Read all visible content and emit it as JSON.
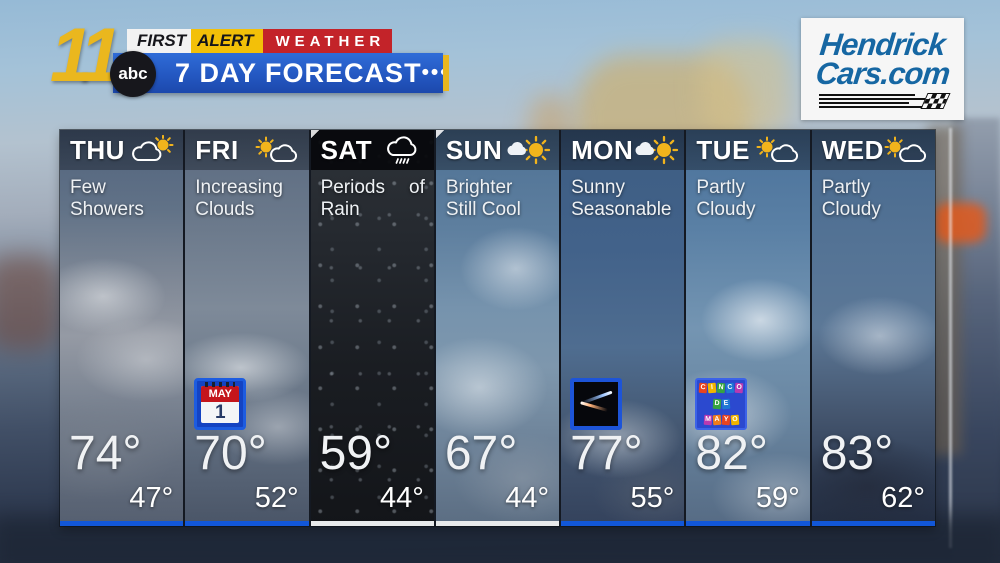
{
  "header": {
    "station_number": "11",
    "network_name": "abc",
    "brand": {
      "first": "FIRST",
      "alert": "ALERT",
      "weather": "WEATHER"
    },
    "title": "7 DAY FORECAST",
    "menu_dots": "•••"
  },
  "sponsor": {
    "name_line1": "Hendrick",
    "name_line2": "Cars.com"
  },
  "colors": {
    "brand_yellow": "#eab71e",
    "alert_red": "#c32329",
    "title_bar_blue": "#2458c2",
    "sponsor_blue": "#1667a3",
    "day_bar_blue": "#1257d8",
    "day_bar_white": "#e8eaec"
  },
  "forecast_days": [
    {
      "day": "THU",
      "icon": "cloud-sun",
      "condition_lines": [
        "Few",
        "Showers"
      ],
      "high": "74°",
      "low": "47°",
      "bar": "blue",
      "badge": null
    },
    {
      "day": "FRI",
      "icon": "sun-cloud",
      "condition_lines": [
        "Increasing",
        "Clouds"
      ],
      "high": "70°",
      "low": "52°",
      "bar": "blue",
      "badge": "calendar",
      "badge_text": {
        "month": "MAY",
        "day": "1"
      }
    },
    {
      "day": "SAT",
      "icon": "rain",
      "condition_lines": [
        "Periods of",
        "Rain"
      ],
      "condition_justify": true,
      "dark_header": true,
      "high": "59°",
      "low": "44°",
      "bar": "white",
      "badge": null
    },
    {
      "day": "SUN",
      "icon": "sun-cloudlet",
      "condition_lines": [
        "Brighter",
        "Still Cool"
      ],
      "high": "67°",
      "low": "44°",
      "bar": "white",
      "badge": null
    },
    {
      "day": "MON",
      "icon": "sun-cloudlet",
      "condition_lines": [
        "Sunny",
        "Seasonable"
      ],
      "high": "77°",
      "low": "55°",
      "bar": "blue",
      "badge": "meteor"
    },
    {
      "day": "TUE",
      "icon": "sun-cloud",
      "condition_lines": [
        "Partly",
        "Cloudy"
      ],
      "high": "82°",
      "low": "59°",
      "bar": "blue",
      "badge": "cinco",
      "badge_text": {
        "lines": [
          "CINCO",
          "DE",
          "MAYO"
        ]
      }
    },
    {
      "day": "WED",
      "icon": "sun-cloud",
      "condition_lines": [
        "Partly",
        "Cloudy"
      ],
      "high": "83°",
      "low": "62°",
      "bar": "blue",
      "badge": null
    }
  ]
}
